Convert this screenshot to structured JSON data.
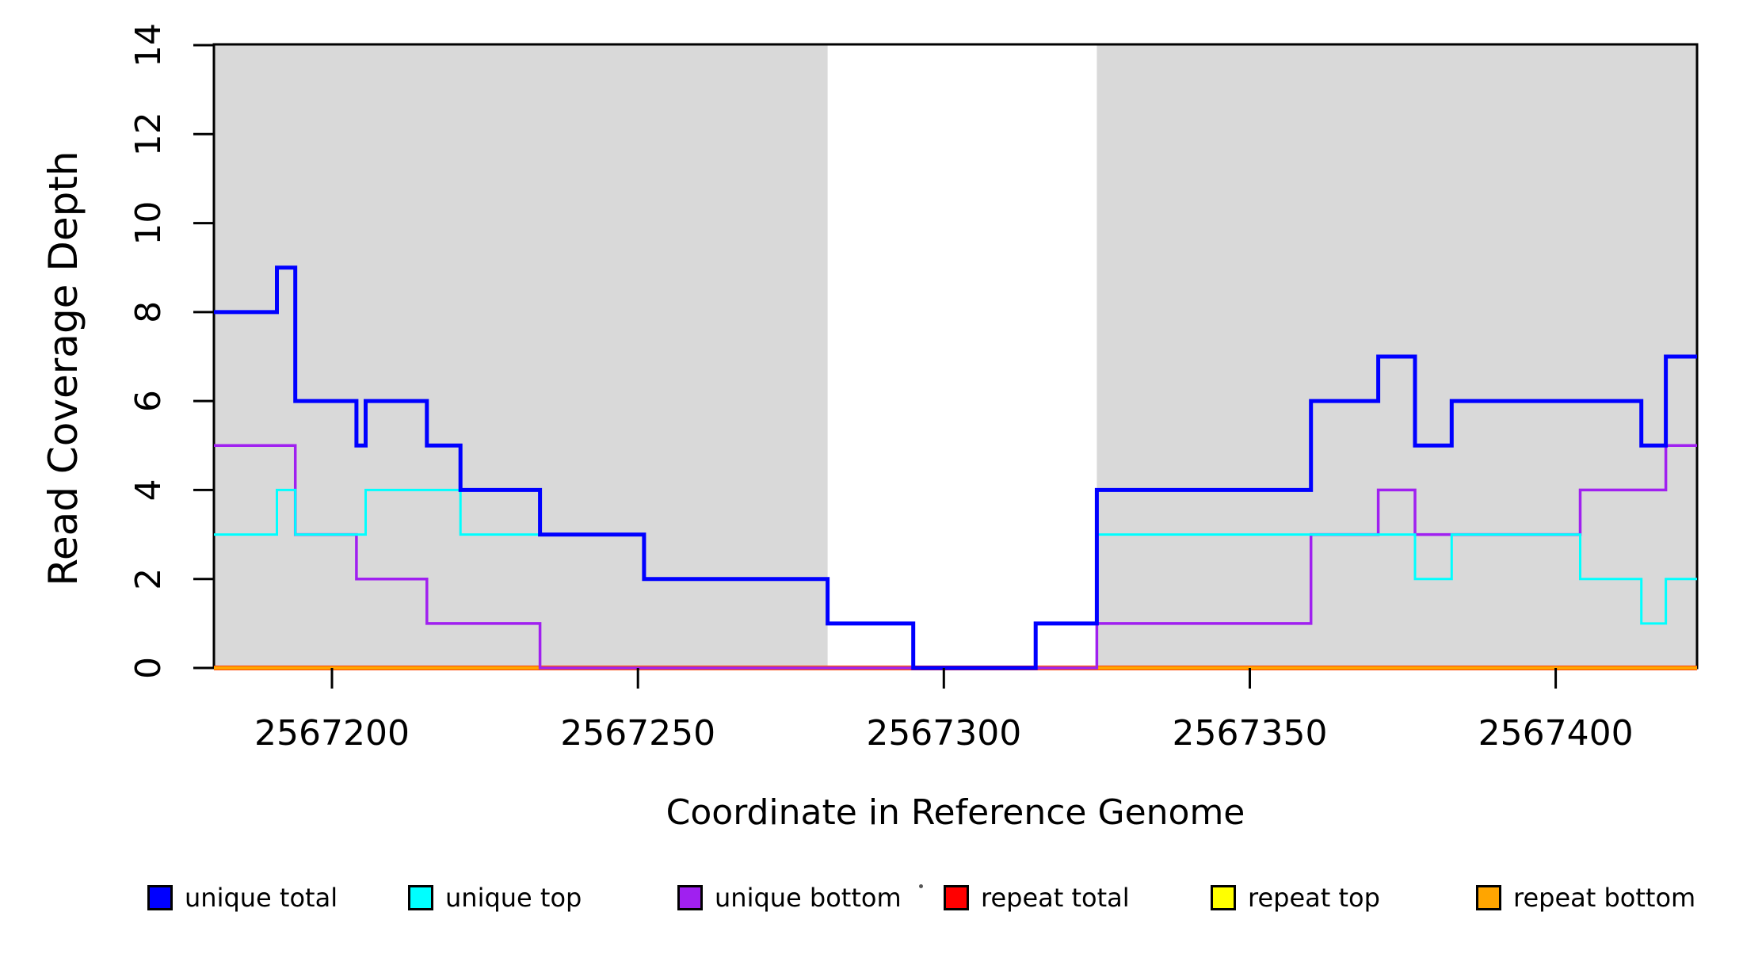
{
  "chart_data": {
    "type": "line",
    "subtype": "step-coverage",
    "title": "",
    "xlabel": "Coordinate in Reference Genome",
    "ylabel": "Read Coverage Depth",
    "x_range": [
      2567180.7,
      2567423.1
    ],
    "y_range": [
      0,
      14
    ],
    "grid": false,
    "legend_position": "bottom",
    "x_ticks": [
      {
        "value": 2567200,
        "label": "2567200"
      },
      {
        "value": 2567250,
        "label": "2567250"
      },
      {
        "value": 2567300,
        "label": "2567300"
      },
      {
        "value": 2567350,
        "label": "2567350"
      },
      {
        "value": 2567400,
        "label": "2567400"
      }
    ],
    "y_ticks": [
      {
        "value": 0,
        "label": "0"
      },
      {
        "value": 2,
        "label": "2"
      },
      {
        "value": 4,
        "label": "4"
      },
      {
        "value": 6,
        "label": "6"
      },
      {
        "value": 8,
        "label": "8"
      },
      {
        "value": 10,
        "label": "10"
      },
      {
        "value": 12,
        "label": "12"
      },
      {
        "value": 14,
        "label": "14"
      }
    ],
    "shaded_regions": [
      {
        "start": 2567180.7,
        "end": 2567281,
        "color": "#D9D9D9"
      },
      {
        "start": 2567325,
        "end": 2567423.1,
        "color": "#D9D9D9"
      }
    ],
    "series": [
      {
        "name": "unique total",
        "color": "#0000FF",
        "line_width": 5,
        "segments": [
          [
            2567180.7,
            2567191,
            8
          ],
          [
            2567191,
            2567194,
            9
          ],
          [
            2567194,
            2567204,
            6
          ],
          [
            2567204,
            2567205.5,
            5
          ],
          [
            2567205.5,
            2567215.5,
            6
          ],
          [
            2567215.5,
            2567221,
            5
          ],
          [
            2567221,
            2567234,
            4
          ],
          [
            2567234,
            2567251,
            3
          ],
          [
            2567251,
            2567281,
            2
          ],
          [
            2567281,
            2567295,
            1
          ],
          [
            2567295,
            2567315,
            0
          ],
          [
            2567315,
            2567325,
            1
          ],
          [
            2567325,
            2567360,
            4
          ],
          [
            2567360,
            2567371,
            6
          ],
          [
            2567371,
            2567377,
            7
          ],
          [
            2567377,
            2567383,
            5
          ],
          [
            2567383,
            2567414,
            6
          ],
          [
            2567414,
            2567418,
            5
          ],
          [
            2567418,
            2567423.1,
            7
          ]
        ]
      },
      {
        "name": "unique top",
        "color": "#00FFFF",
        "line_width": 3,
        "segments": [
          [
            2567180.7,
            2567191,
            3
          ],
          [
            2567191,
            2567194,
            4
          ],
          [
            2567194,
            2567205.5,
            3
          ],
          [
            2567205.5,
            2567221,
            4
          ],
          [
            2567221,
            2567251,
            3
          ],
          [
            2567251,
            2567281,
            2
          ],
          [
            2567281,
            2567295,
            1
          ],
          [
            2567295,
            2567315,
            0
          ],
          [
            2567315,
            2567325,
            1
          ],
          [
            2567325,
            2567377,
            3
          ],
          [
            2567377,
            2567383,
            2
          ],
          [
            2567383,
            2567404,
            3
          ],
          [
            2567404,
            2567414,
            2
          ],
          [
            2567414,
            2567418,
            1
          ],
          [
            2567418,
            2567423.1,
            2
          ]
        ]
      },
      {
        "name": "unique bottom",
        "color": "#A020F0",
        "line_width": 3.5,
        "segments": [
          [
            2567180.7,
            2567194,
            5
          ],
          [
            2567194,
            2567204,
            3
          ],
          [
            2567204,
            2567215.5,
            2
          ],
          [
            2567215.5,
            2567234,
            1
          ],
          [
            2567234,
            2567325,
            0
          ],
          [
            2567325,
            2567360,
            1
          ],
          [
            2567360,
            2567371,
            3
          ],
          [
            2567371,
            2567377,
            4
          ],
          [
            2567377,
            2567404,
            3
          ],
          [
            2567404,
            2567418,
            4
          ],
          [
            2567418,
            2567423.1,
            5
          ]
        ]
      },
      {
        "name": "repeat total",
        "color": "#FF0000",
        "line_width": 6,
        "segments": [
          [
            2567180.7,
            2567423.1,
            0
          ]
        ]
      },
      {
        "name": "repeat top",
        "color": "#FFFF00",
        "line_width": 4.5,
        "segments": [
          [
            2567180.7,
            2567423.1,
            0
          ]
        ]
      },
      {
        "name": "repeat bottom",
        "color": "#FFA500",
        "line_width": 4,
        "segments": [
          [
            2567180.7,
            2567423.1,
            0
          ]
        ]
      }
    ],
    "draw_order": [
      3,
      4,
      5,
      2,
      1,
      0
    ]
  },
  "legend": {
    "items": [
      {
        "label": "unique total",
        "color": "#0000FF"
      },
      {
        "label": "unique top",
        "color": "#00FFFF"
      },
      {
        "label": "unique bottom",
        "color": "#A020F0"
      },
      {
        "label": "repeat total",
        "color": "#FF0000"
      },
      {
        "label": "repeat top",
        "color": "#FFFF00"
      },
      {
        "label": "repeat bottom",
        "color": "#FFA500"
      }
    ]
  }
}
